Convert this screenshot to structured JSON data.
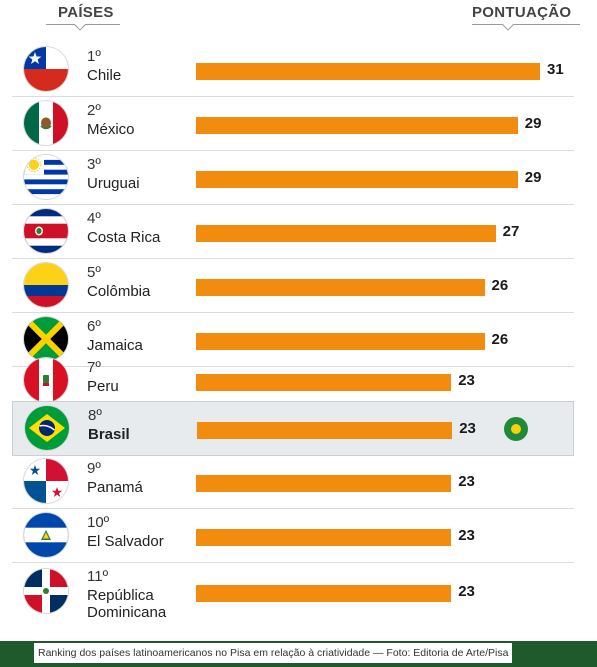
{
  "header": {
    "left": "PAÍSES",
    "right": "PONTUAÇÃO"
  },
  "footer": {
    "caption": "Ranking dos países latinoamericanos no Pisa em relação à criatividade — Foto: Editoria de Arte/Pisa"
  },
  "chart_data": {
    "type": "bar",
    "orientation": "horizontal",
    "categories": [
      "Chile",
      "México",
      "Uruguai",
      "Costa Rica",
      "Colômbia",
      "Jamaica",
      "Peru",
      "Brasil",
      "Panamá",
      "El Salvador",
      "República Dominicana"
    ],
    "ranks": [
      "1º",
      "2º",
      "3º",
      "4º",
      "5º",
      "6º",
      "7º",
      "8º",
      "9º",
      "10º",
      "11º"
    ],
    "values": [
      31,
      29,
      29,
      27,
      26,
      26,
      23,
      23,
      23,
      23,
      23
    ],
    "value_labels": [
      "31",
      "29",
      "29",
      "27",
      "26",
      "26",
      "23",
      "23",
      "23",
      "23",
      "23"
    ],
    "highlight": "Brasil",
    "bar_color": "#f28c0f",
    "highlight_row_color": "#e7ebee",
    "grid": false,
    "legend": "none"
  }
}
